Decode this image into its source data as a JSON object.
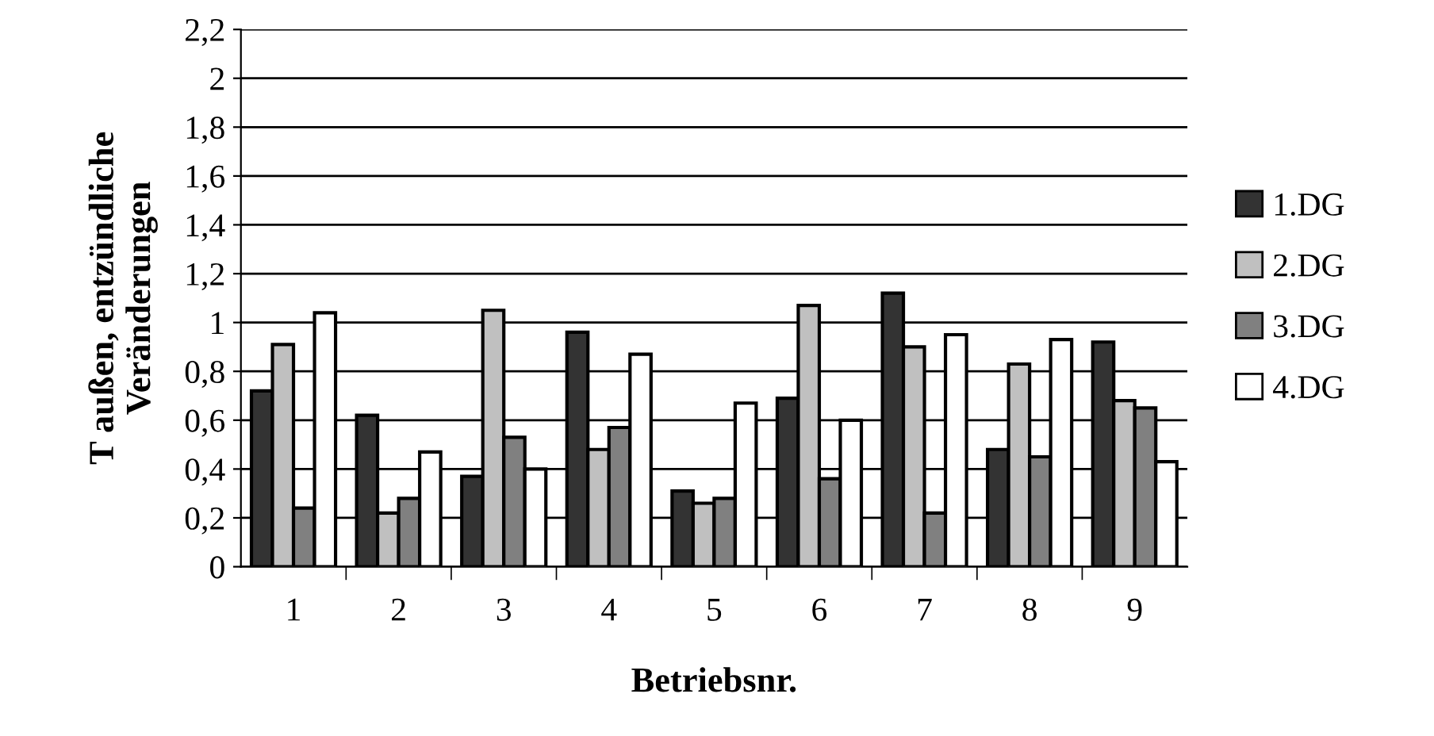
{
  "chart_data": {
    "type": "bar",
    "xlabel": "Betriebsnr.",
    "ylabel": "T außen, entzündliche\nVeränderungen",
    "categories": [
      "1",
      "2",
      "3",
      "4",
      "5",
      "6",
      "7",
      "8",
      "9"
    ],
    "series": [
      {
        "name": "1.DG",
        "color": "#333333",
        "values": [
          0.72,
          0.62,
          0.37,
          0.96,
          0.31,
          0.69,
          1.12,
          0.48,
          0.92
        ]
      },
      {
        "name": "2.DG",
        "color": "#c0c0c0",
        "values": [
          0.91,
          0.22,
          1.05,
          0.48,
          0.26,
          1.07,
          0.9,
          0.83,
          0.68
        ]
      },
      {
        "name": "3.DG",
        "color": "#808080",
        "values": [
          0.24,
          0.28,
          0.53,
          0.57,
          0.28,
          0.36,
          0.22,
          0.45,
          0.65
        ]
      },
      {
        "name": "4.DG",
        "color": "#ffffff",
        "values": [
          1.04,
          0.47,
          0.4,
          0.87,
          0.67,
          0.6,
          0.95,
          0.93,
          0.43
        ]
      }
    ],
    "ylim": [
      0,
      2.2
    ],
    "yticks": [
      0,
      {
        "value": 0.2,
        "label": "0,2"
      },
      {
        "value": 0.4,
        "label": "0,4"
      },
      {
        "value": 0.6,
        "label": "0,6"
      },
      {
        "value": 0.8,
        "label": "0,8"
      },
      1,
      {
        "value": 1.2,
        "label": "1,2"
      },
      {
        "value": 1.4,
        "label": "1,4"
      },
      {
        "value": 1.6,
        "label": "1,6"
      },
      {
        "value": 1.8,
        "label": "1,8"
      },
      2,
      {
        "value": 2.2,
        "label": "2,2"
      }
    ],
    "grid": "y",
    "legend": "right"
  }
}
